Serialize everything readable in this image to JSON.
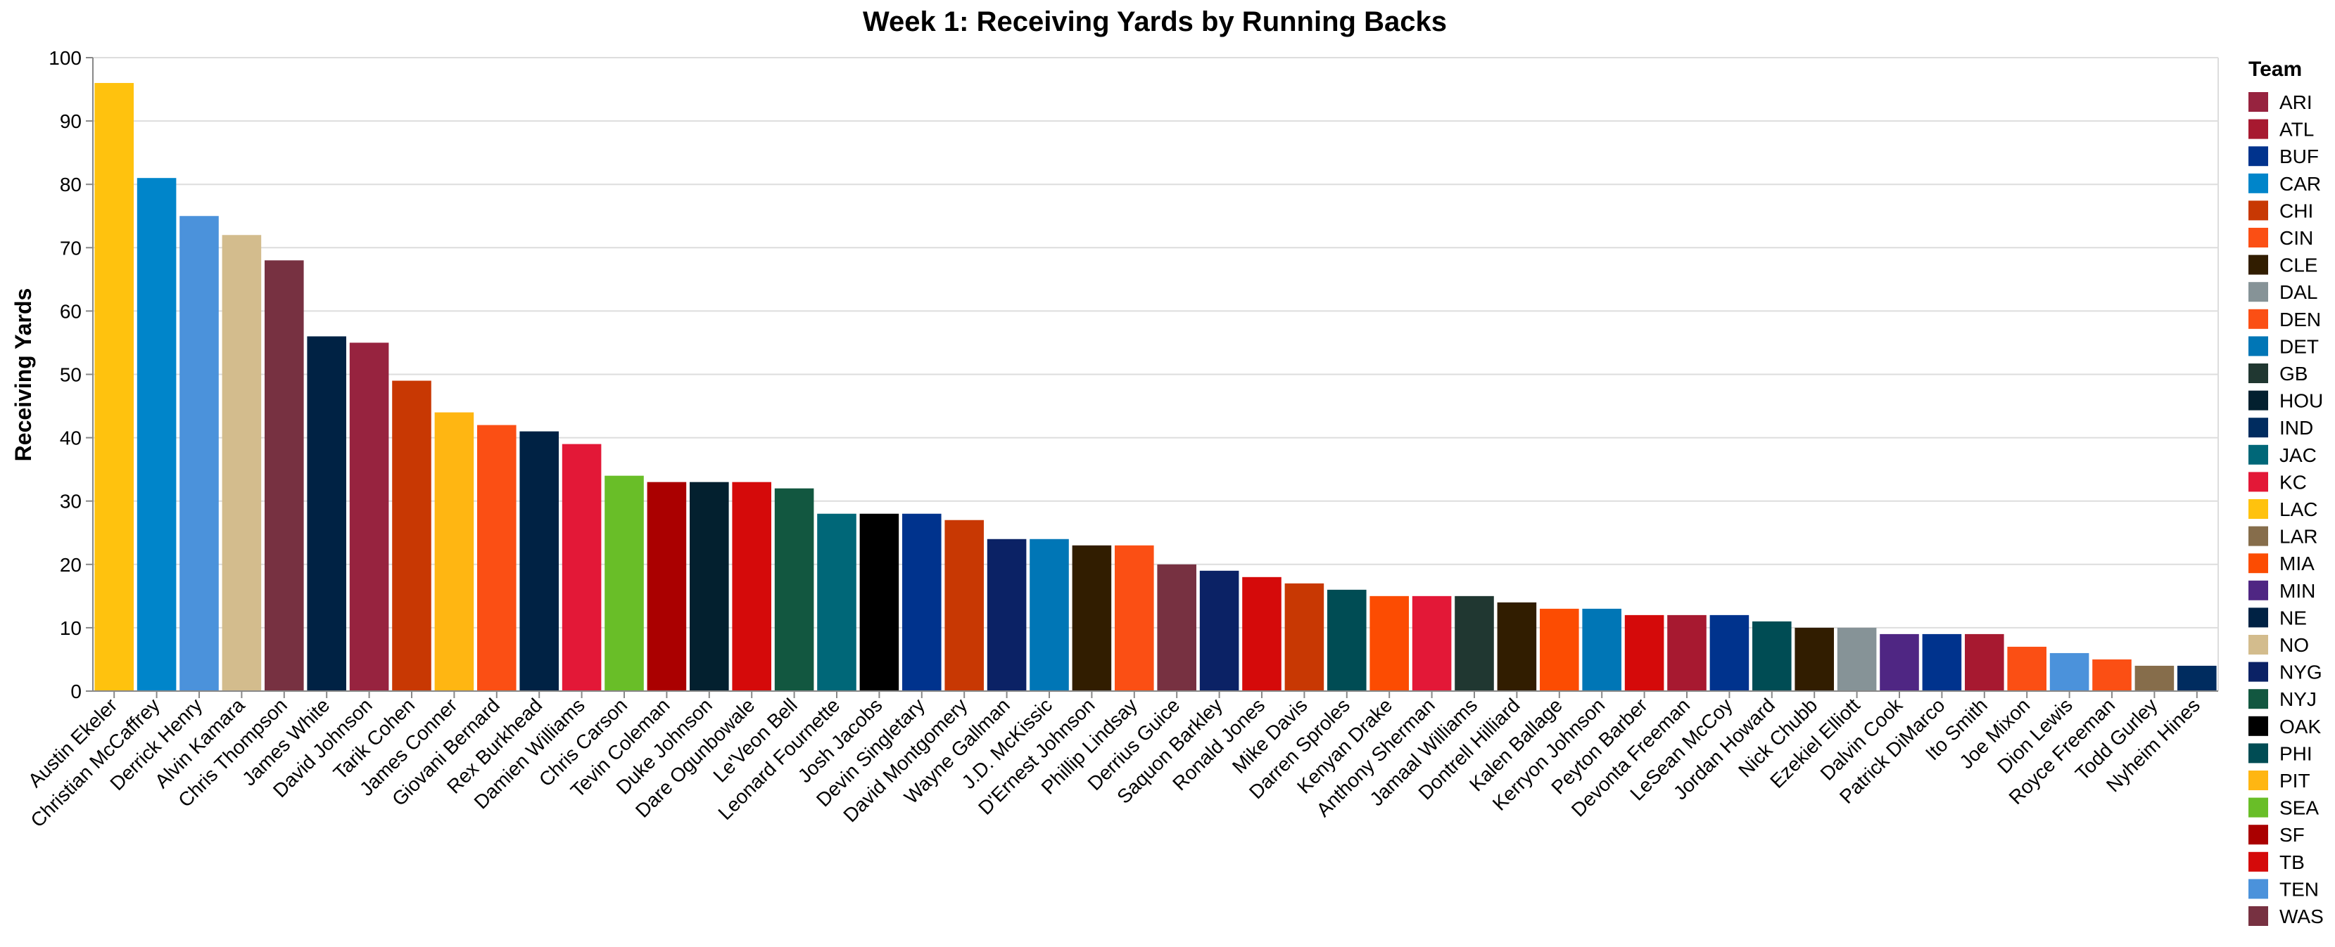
{
  "chart_data": {
    "type": "bar",
    "title": "Week 1: Receiving Yards by Running Backs",
    "xlabel": "",
    "ylabel": "Receiving Yards",
    "ylim": [
      0,
      100
    ],
    "yticks": [
      0,
      10,
      20,
      30,
      40,
      50,
      60,
      70,
      80,
      90,
      100
    ],
    "grid": true,
    "legend": {
      "title": "Team",
      "placement": "right"
    },
    "categories": [
      "Austin Ekeler",
      "Christian McCaffrey",
      "Derrick Henry",
      "Alvin Kamara",
      "Chris Thompson",
      "James White",
      "David Johnson",
      "Tarik Cohen",
      "James Conner",
      "Giovani Bernard",
      "Rex Burkhead",
      "Damien Williams",
      "Chris Carson",
      "Tevin Coleman",
      "Duke Johnson",
      "Dare Ogunbowale",
      "Le'Veon Bell",
      "Leonard Fournette",
      "Josh Jacobs",
      "Devin Singletary",
      "David Montgomery",
      "Wayne Gallman",
      "J.D. McKissic",
      "D'Ernest Johnson",
      "Phillip Lindsay",
      "Derrius Guice",
      "Saquon Barkley",
      "Ronald Jones",
      "Mike Davis",
      "Darren Sproles",
      "Kenyan Drake",
      "Anthony Sherman",
      "Jamaal Williams",
      "Dontrell Hilliard",
      "Kalen Ballage",
      "Kerryon Johnson",
      "Peyton Barber",
      "Devonta Freeman",
      "LeSean McCoy",
      "Jordan Howard",
      "Nick Chubb",
      "Ezekiel Elliott",
      "Dalvin Cook",
      "Patrick DiMarco",
      "Ito Smith",
      "Joe Mixon",
      "Dion Lewis",
      "Royce Freeman",
      "Todd Gurley",
      "Nyheim Hines"
    ],
    "values": [
      96,
      81,
      75,
      72,
      68,
      56,
      55,
      49,
      44,
      42,
      41,
      39,
      34,
      33,
      33,
      33,
      32,
      28,
      28,
      28,
      27,
      24,
      24,
      23,
      23,
      20,
      19,
      18,
      17,
      16,
      15,
      15,
      15,
      14,
      13,
      13,
      12,
      12,
      12,
      11,
      10,
      10,
      9,
      9,
      9,
      7,
      6,
      5,
      4,
      4
    ],
    "teams": [
      "LAC",
      "CAR",
      "TEN",
      "NO",
      "WAS",
      "NE",
      "ARI",
      "CHI",
      "PIT",
      "CIN",
      "NE",
      "KC",
      "SEA",
      "SF",
      "HOU",
      "TB",
      "NYJ",
      "JAC",
      "OAK",
      "BUF",
      "CHI",
      "NYG",
      "DET",
      "CLE",
      "DEN",
      "WAS",
      "NYG",
      "TB",
      "CHI",
      "PHI",
      "MIA",
      "KC",
      "GB",
      "CLE",
      "MIA",
      "DET",
      "TB",
      "ATL",
      "BUF",
      "PHI",
      "CLE",
      "DAL",
      "MIN",
      "BUF",
      "ATL",
      "CIN",
      "TEN",
      "DEN",
      "LAR",
      "IND"
    ],
    "legend_entries": [
      {
        "team": "ARI",
        "color": "#97233F"
      },
      {
        "team": "ATL",
        "color": "#A71930"
      },
      {
        "team": "BUF",
        "color": "#00338D"
      },
      {
        "team": "CAR",
        "color": "#0085CA"
      },
      {
        "team": "CHI",
        "color": "#C83803"
      },
      {
        "team": "CIN",
        "color": "#FB4F14"
      },
      {
        "team": "CLE",
        "color": "#311D00"
      },
      {
        "team": "DAL",
        "color": "#869397"
      },
      {
        "team": "DEN",
        "color": "#FB4F14"
      },
      {
        "team": "DET",
        "color": "#0076B6"
      },
      {
        "team": "GB",
        "color": "#203731"
      },
      {
        "team": "HOU",
        "color": "#03202F"
      },
      {
        "team": "IND",
        "color": "#002C5F"
      },
      {
        "team": "JAC",
        "color": "#006778"
      },
      {
        "team": "KC",
        "color": "#E31837"
      },
      {
        "team": "LAC",
        "color": "#FFC20E"
      },
      {
        "team": "LAR",
        "color": "#866D4B"
      },
      {
        "team": "MIA",
        "color": "#FC4C02"
      },
      {
        "team": "MIN",
        "color": "#4F2683"
      },
      {
        "team": "NE",
        "color": "#002244"
      },
      {
        "team": "NO",
        "color": "#D3BC8D"
      },
      {
        "team": "NYG",
        "color": "#0B2265"
      },
      {
        "team": "NYJ",
        "color": "#125740"
      },
      {
        "team": "OAK",
        "color": "#000000"
      },
      {
        "team": "PHI",
        "color": "#004C54"
      },
      {
        "team": "PIT",
        "color": "#FFB612"
      },
      {
        "team": "SEA",
        "color": "#69BE28"
      },
      {
        "team": "SF",
        "color": "#AA0000"
      },
      {
        "team": "TB",
        "color": "#D50A0A"
      },
      {
        "team": "TEN",
        "color": "#4B92DB"
      },
      {
        "team": "WAS",
        "color": "#773141"
      }
    ]
  }
}
